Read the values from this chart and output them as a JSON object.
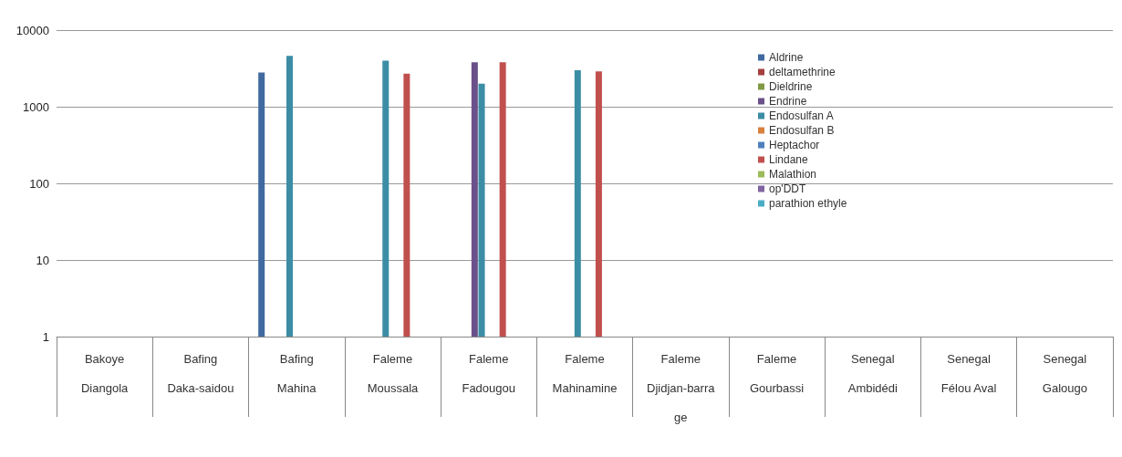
{
  "chart_data": {
    "type": "bar",
    "log": true,
    "grid": "y",
    "legend": "top right",
    "categories": [
      "Bakoye\nDiangola",
      "Bafing\nDaka-saidou",
      "Bafing\nMahina",
      "Faleme\nMoussala",
      "Faleme\nFadougou",
      "Faleme\nMahinamine",
      "Faleme\nDjidjan-barrage",
      "Faleme\nGourbassi",
      "Senegal\nAmbidédi",
      "Senegal\nFélou Aval",
      "Senegal\nGalougo"
    ],
    "ylim": [
      1,
      10000
    ],
    "yticks": [
      1,
      10,
      100,
      1000,
      10000
    ],
    "series": [
      {
        "name": "Aldrine",
        "color": "#4069a0",
        "values": [
          null,
          null,
          2800,
          null,
          null,
          null,
          null,
          null,
          null,
          null,
          null
        ]
      },
      {
        "name": "deltamethrine",
        "color": "#a5403d",
        "values": [
          null,
          null,
          null,
          null,
          null,
          null,
          null,
          null,
          null,
          null,
          null
        ]
      },
      {
        "name": "Dieldrine",
        "color": "#809a46",
        "values": [
          null,
          null,
          null,
          null,
          null,
          null,
          null,
          null,
          null,
          null,
          null
        ]
      },
      {
        "name": "Endrine",
        "color": "#6a5189",
        "values": [
          null,
          null,
          null,
          null,
          3800,
          null,
          null,
          null,
          null,
          null,
          null
        ]
      },
      {
        "name": "Endosulfan A",
        "color": "#3b8da5",
        "values": [
          null,
          null,
          4600,
          4000,
          2000,
          3000,
          null,
          null,
          null,
          null,
          null
        ]
      },
      {
        "name": "Endosulfan B",
        "color": "#d8803c",
        "values": [
          null,
          null,
          null,
          null,
          null,
          null,
          null,
          null,
          null,
          null,
          null
        ]
      },
      {
        "name": "Heptachor",
        "color": "#4f81bd",
        "values": [
          null,
          null,
          null,
          null,
          null,
          null,
          null,
          null,
          null,
          null,
          null
        ]
      },
      {
        "name": "Lindane",
        "color": "#c0504d",
        "values": [
          null,
          null,
          null,
          2700,
          3800,
          2900,
          null,
          null,
          null,
          null,
          null
        ]
      },
      {
        "name": "Malathion",
        "color": "#9bbb59",
        "values": [
          null,
          null,
          null,
          null,
          null,
          null,
          null,
          null,
          null,
          null,
          null
        ]
      },
      {
        "name": "op'DDT",
        "color": "#8064a2",
        "values": [
          null,
          null,
          null,
          null,
          null,
          null,
          null,
          null,
          null,
          null,
          null
        ]
      },
      {
        "name": "parathion ethyle",
        "color": "#4bacc6",
        "values": [
          null,
          null,
          null,
          null,
          null,
          null,
          null,
          null,
          null,
          null,
          null
        ]
      }
    ]
  }
}
